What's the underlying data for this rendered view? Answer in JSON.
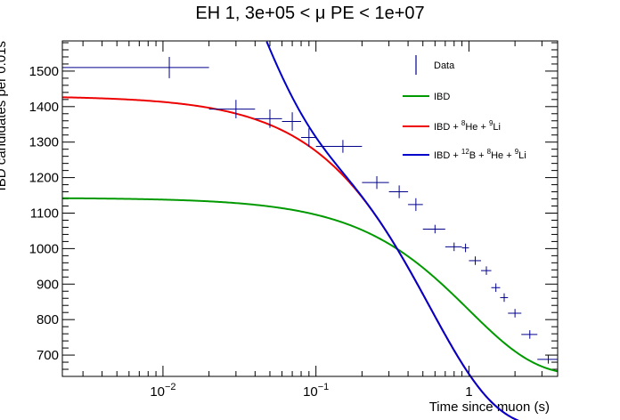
{
  "chart_data": {
    "type": "scatter",
    "title": "EH 1, 3e+05 < μ PE < 1e+07",
    "xlabel": "Time since muon (s)",
    "ylabel": "IBD candidates per 0.01s",
    "xscale": "log",
    "xlim": [
      0.0022,
      3.8
    ],
    "ylim": [
      640,
      1585
    ],
    "legend_position": "top-right",
    "x_ticks": [
      {
        "value": 0.01,
        "label": "10",
        "exp": "−2"
      },
      {
        "value": 0.1,
        "label": "10",
        "exp": "−1"
      },
      {
        "value": 1,
        "label": "1",
        "exp": ""
      }
    ],
    "y_ticks": [
      {
        "value": 700,
        "label": "700"
      },
      {
        "value": 800,
        "label": "800"
      },
      {
        "value": 900,
        "label": "900"
      },
      {
        "value": 1000,
        "label": "1000"
      },
      {
        "value": 1100,
        "label": "1100"
      },
      {
        "value": 1200,
        "label": "1200"
      },
      {
        "value": 1300,
        "label": "1300"
      },
      {
        "value": 1400,
        "label": "1400"
      },
      {
        "value": 1500,
        "label": "1500"
      }
    ],
    "data": {
      "name": "Data",
      "color": "#00008b",
      "points": [
        {
          "x": 0.011,
          "xlo": 0.0022,
          "xhi": 0.02,
          "y": 1510,
          "yerr": 30
        },
        {
          "x": 0.03,
          "xlo": 0.02,
          "xhi": 0.04,
          "y": 1393,
          "yerr": 26
        },
        {
          "x": 0.05,
          "xlo": 0.04,
          "xhi": 0.06,
          "y": 1366,
          "yerr": 26
        },
        {
          "x": 0.07,
          "xlo": 0.06,
          "xhi": 0.08,
          "y": 1358,
          "yerr": 26
        },
        {
          "x": 0.09,
          "xlo": 0.08,
          "xhi": 0.1,
          "y": 1313,
          "yerr": 26
        },
        {
          "x": 0.15,
          "xlo": 0.1,
          "xhi": 0.2,
          "y": 1288,
          "yerr": 18
        },
        {
          "x": 0.25,
          "xlo": 0.2,
          "xhi": 0.3,
          "y": 1186,
          "yerr": 18
        },
        {
          "x": 0.35,
          "xlo": 0.3,
          "xhi": 0.4,
          "y": 1160,
          "yerr": 18
        },
        {
          "x": 0.45,
          "xlo": 0.4,
          "xhi": 0.5,
          "y": 1124,
          "yerr": 18
        },
        {
          "x": 0.6,
          "xlo": 0.5,
          "xhi": 0.7,
          "y": 1055,
          "yerr": 12
        },
        {
          "x": 0.8,
          "xlo": 0.7,
          "xhi": 0.9,
          "y": 1005,
          "yerr": 12
        },
        {
          "x": 0.95,
          "xlo": 0.9,
          "xhi": 1.0,
          "y": 1002,
          "yerr": 12
        },
        {
          "x": 1.1,
          "xlo": 1.0,
          "xhi": 1.2,
          "y": 966,
          "yerr": 12
        },
        {
          "x": 1.3,
          "xlo": 1.2,
          "xhi": 1.4,
          "y": 938,
          "yerr": 12
        },
        {
          "x": 1.5,
          "xlo": 1.4,
          "xhi": 1.6,
          "y": 890,
          "yerr": 12
        },
        {
          "x": 1.7,
          "xlo": 1.6,
          "xhi": 1.8,
          "y": 862,
          "yerr": 12
        },
        {
          "x": 2.0,
          "xlo": 1.8,
          "xhi": 2.2,
          "y": 818,
          "yerr": 12
        },
        {
          "x": 2.5,
          "xlo": 2.2,
          "xhi": 2.8,
          "y": 758,
          "yerr": 12
        },
        {
          "x": 3.3,
          "xlo": 2.8,
          "xhi": 3.8,
          "y": 688,
          "yerr": 12
        }
      ]
    },
    "series": [
      {
        "name": "IBD",
        "color": "#009900",
        "A": 500,
        "tau": 1.0,
        "C": 643
      },
      {
        "name": "IBD + 8He + 9Li",
        "color": "#ee0000",
        "A": 935,
        "tau": 0.55,
        "C": 495
      },
      {
        "name": "IBD + 12B + 8He + 9Li",
        "color": "#0000cc",
        "A": 935,
        "tau": 0.55,
        "C": 495,
        "B": 1160,
        "tauB": 0.0295
      }
    ],
    "legend": [
      {
        "label": "Data",
        "color": "#00008b",
        "kind": "errorbar"
      },
      {
        "label": "IBD",
        "color": "#009900",
        "kind": "line"
      },
      {
        "parts": [
          {
            "t": "IBD + "
          },
          {
            "t": "8",
            "sup": true
          },
          {
            "t": "He + "
          },
          {
            "t": "9",
            "sup": true
          },
          {
            "t": "Li"
          }
        ],
        "color": "#ee0000",
        "kind": "line"
      },
      {
        "parts": [
          {
            "t": "IBD + "
          },
          {
            "t": "12",
            "sup": true
          },
          {
            "t": "B + "
          },
          {
            "t": "8",
            "sup": true
          },
          {
            "t": "He + "
          },
          {
            "t": "9",
            "sup": true
          },
          {
            "t": "Li"
          }
        ],
        "color": "#0000cc",
        "kind": "line"
      }
    ]
  }
}
